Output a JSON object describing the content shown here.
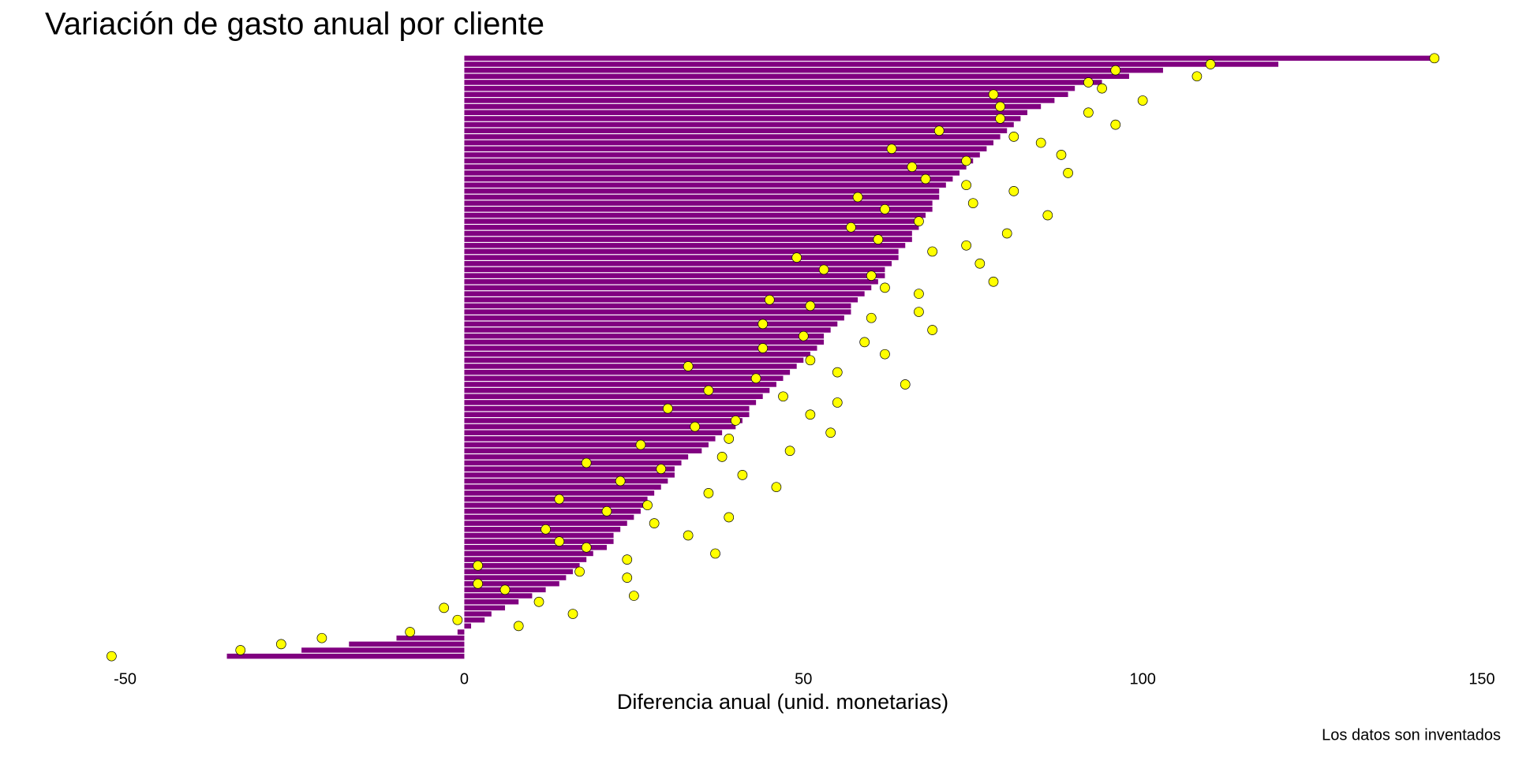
{
  "chart_data": {
    "type": "bar",
    "orientation": "horizontal",
    "title": "Variación de gasto anual por cliente",
    "xlabel": "Diferencia anual (unid. monetarias)",
    "caption": "Los datos son inventados",
    "categories": [
      null,
      null,
      null,
      null,
      null,
      null,
      null,
      null,
      null,
      null,
      null,
      null,
      null,
      null,
      null,
      null,
      null,
      null,
      null,
      null,
      null,
      null,
      null,
      null,
      null,
      null,
      null,
      null,
      null,
      null,
      null,
      null,
      null,
      null,
      null,
      null,
      null,
      null,
      null,
      null,
      null,
      null,
      null,
      null,
      null,
      null,
      null,
      null,
      null,
      null,
      null,
      null,
      null,
      null,
      null,
      null,
      null,
      null,
      null,
      null,
      null,
      null,
      null,
      null,
      null,
      null,
      null,
      null,
      null,
      null,
      null,
      null,
      null,
      null,
      null,
      null,
      null,
      null,
      null,
      null,
      null,
      null,
      null,
      null,
      null,
      null,
      null,
      null,
      null,
      null,
      null,
      null,
      null,
      null,
      null,
      null,
      null,
      null,
      null,
      null
    ],
    "series": [
      {
        "type": "bar",
        "color": "#800080",
        "values": [
          -35,
          -24,
          -17,
          -10,
          -1,
          1,
          3,
          4,
          6,
          8,
          10,
          12,
          14,
          15,
          16,
          17,
          18,
          19,
          21,
          22,
          22,
          23,
          24,
          25,
          26,
          27,
          27,
          28,
          29,
          30,
          31,
          31,
          32,
          33,
          35,
          36,
          37,
          38,
          40,
          41,
          42,
          42,
          43,
          44,
          45,
          46,
          47,
          48,
          49,
          50,
          51,
          52,
          53,
          53,
          54,
          55,
          56,
          57,
          57,
          58,
          59,
          60,
          61,
          62,
          62,
          63,
          64,
          64,
          65,
          66,
          66,
          67,
          67,
          68,
          69,
          69,
          70,
          70,
          71,
          72,
          73,
          74,
          75,
          76,
          77,
          78,
          79,
          80,
          81,
          82,
          83,
          85,
          87,
          89,
          90,
          94,
          98,
          103,
          120,
          143
        ]
      },
      {
        "type": "scatter",
        "color": "#ffff00",
        "values": [
          -52,
          -33,
          -27,
          -21,
          -8,
          8,
          -1,
          16,
          -3,
          11,
          25,
          6,
          2,
          24,
          17,
          2,
          24,
          37,
          18,
          14,
          33,
          12,
          28,
          39,
          21,
          27,
          14,
          36,
          46,
          23,
          41,
          29,
          18,
          38,
          48,
          26,
          39,
          54,
          34,
          40,
          51,
          30,
          55,
          47,
          36,
          65,
          43,
          55,
          33,
          51,
          62,
          44,
          59,
          50,
          69,
          44,
          60,
          67,
          51,
          45,
          67,
          62,
          78,
          60,
          53,
          76,
          49,
          69,
          74,
          61,
          80,
          57,
          67,
          86,
          62,
          75,
          58,
          81,
          74,
          68,
          89,
          66,
          74,
          88,
          63,
          85,
          81,
          70,
          96,
          79,
          92,
          79,
          100,
          78,
          94,
          92,
          108,
          96,
          110,
          143
        ]
      }
    ],
    "xlim": [
      -56,
      150
    ],
    "xticks": [
      -50,
      0,
      50,
      100,
      150
    ],
    "grid": false
  }
}
